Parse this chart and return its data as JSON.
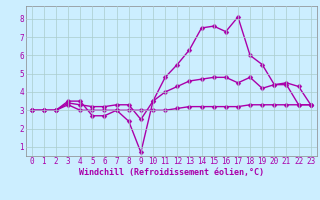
{
  "background_color": "#cceeff",
  "grid_color": "#aacccc",
  "line_color": "#aa00aa",
  "marker": "D",
  "markersize": 2.5,
  "linewidth": 1.0,
  "xlim": [
    -0.5,
    23.5
  ],
  "ylim": [
    0.5,
    8.7
  ],
  "xlabel": "Windchill (Refroidissement éolien,°C)",
  "xlabel_fontsize": 6,
  "yticks": [
    1,
    2,
    3,
    4,
    5,
    6,
    7,
    8
  ],
  "xticks": [
    0,
    1,
    2,
    3,
    4,
    5,
    6,
    7,
    8,
    9,
    10,
    11,
    12,
    13,
    14,
    15,
    16,
    17,
    18,
    19,
    20,
    21,
    22,
    23
  ],
  "tick_fontsize": 5.5,
  "lines": [
    {
      "x": [
        0,
        1,
        2,
        3,
        4,
        5,
        6,
        7,
        8,
        9,
        10,
        11,
        12,
        13,
        14,
        15,
        16,
        17,
        18,
        19,
        20,
        21,
        22,
        23
      ],
      "y": [
        3.0,
        3.0,
        3.0,
        3.3,
        3.0,
        3.0,
        3.0,
        3.0,
        3.0,
        3.0,
        3.0,
        3.0,
        3.1,
        3.2,
        3.2,
        3.2,
        3.2,
        3.2,
        3.3,
        3.3,
        3.3,
        3.3,
        3.3,
        3.3
      ]
    },
    {
      "x": [
        0,
        1,
        2,
        3,
        4,
        5,
        6,
        7,
        8,
        9,
        10,
        11,
        12,
        13,
        14,
        15,
        16,
        17,
        18,
        19,
        20,
        21,
        22,
        23
      ],
      "y": [
        3.0,
        3.0,
        3.0,
        3.4,
        3.3,
        3.2,
        3.2,
        3.3,
        3.3,
        2.5,
        3.5,
        4.0,
        4.3,
        4.6,
        4.7,
        4.8,
        4.8,
        4.5,
        4.8,
        4.2,
        4.4,
        4.4,
        3.3,
        3.3
      ]
    },
    {
      "x": [
        0,
        1,
        2,
        3,
        4,
        5,
        6,
        7,
        8,
        9,
        10,
        11,
        12,
        13,
        14,
        15,
        16,
        17,
        18,
        19,
        20,
        21,
        22,
        23
      ],
      "y": [
        3.0,
        3.0,
        3.0,
        3.5,
        3.5,
        2.7,
        2.7,
        3.0,
        2.4,
        0.7,
        3.5,
        4.8,
        5.5,
        6.3,
        7.5,
        7.6,
        7.3,
        8.1,
        6.0,
        5.5,
        4.4,
        4.5,
        4.3,
        3.3
      ]
    }
  ]
}
